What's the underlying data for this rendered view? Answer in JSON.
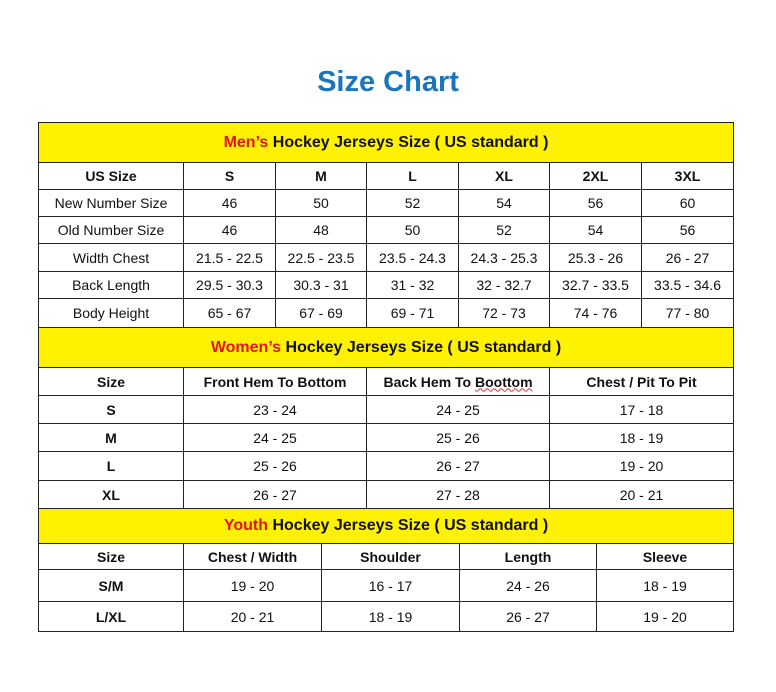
{
  "title": "Size Chart",
  "colors": {
    "title": "#1b75bb",
    "banner_bg": "#fff200",
    "banner_highlight": "#e2141b"
  },
  "sections": [
    {
      "id": "men",
      "banner_highlight": "Men’s",
      "banner_rest": " Hockey Jerseys Size ( US standard )",
      "headers": [
        "US Size",
        "S",
        "M",
        "L",
        "XL",
        "2XL",
        "3XL"
      ],
      "rows": [
        [
          "New Number Size",
          "46",
          "50",
          "52",
          "54",
          "56",
          "60"
        ],
        [
          "Old Number Size",
          "46",
          "48",
          "50",
          "52",
          "54",
          "56"
        ],
        [
          "Width Chest",
          "21.5 - 22.5",
          "22.5 - 23.5",
          "23.5 - 24.3",
          "24.3 - 25.3",
          "25.3 - 26",
          "26 - 27"
        ],
        [
          "Back Length",
          "29.5 - 30.3",
          "30.3 - 31",
          "31 - 32",
          "32 - 32.7",
          "32.7 - 33.5",
          "33.5 - 34.6"
        ],
        [
          "Body Height",
          "65 - 67",
          "67 - 69",
          "69 - 71",
          "72 - 73",
          "74 - 76",
          "77 - 80"
        ]
      ]
    },
    {
      "id": "women",
      "banner_highlight": "Women’s",
      "banner_rest": " Hockey Jerseys Size ( US standard )",
      "headers": [
        "Size",
        "Front Hem To Bottom",
        "Back Hem To Boottom",
        "Chest / Pit To Pit"
      ],
      "rows": [
        [
          "S",
          "23 - 24",
          "24 - 25",
          "17 - 18"
        ],
        [
          "M",
          "24 - 25",
          "25 - 26",
          "18 - 19"
        ],
        [
          "L",
          "25 - 26",
          "26 - 27",
          "19 - 20"
        ],
        [
          "XL",
          "26 - 27",
          "27 - 28",
          "20 - 21"
        ]
      ]
    },
    {
      "id": "youth",
      "banner_highlight": "Youth",
      "banner_rest": " Hockey Jerseys Size ( US standard )",
      "headers": [
        "Size",
        "Chest / Width",
        "Shoulder",
        "Length",
        "Sleeve"
      ],
      "rows": [
        [
          "S/M",
          "19 - 20",
          "16 - 17",
          "24 - 26",
          "18 - 19"
        ],
        [
          "L/XL",
          "20 - 21",
          "18 - 19",
          "26 - 27",
          "19 - 20"
        ]
      ]
    }
  ]
}
